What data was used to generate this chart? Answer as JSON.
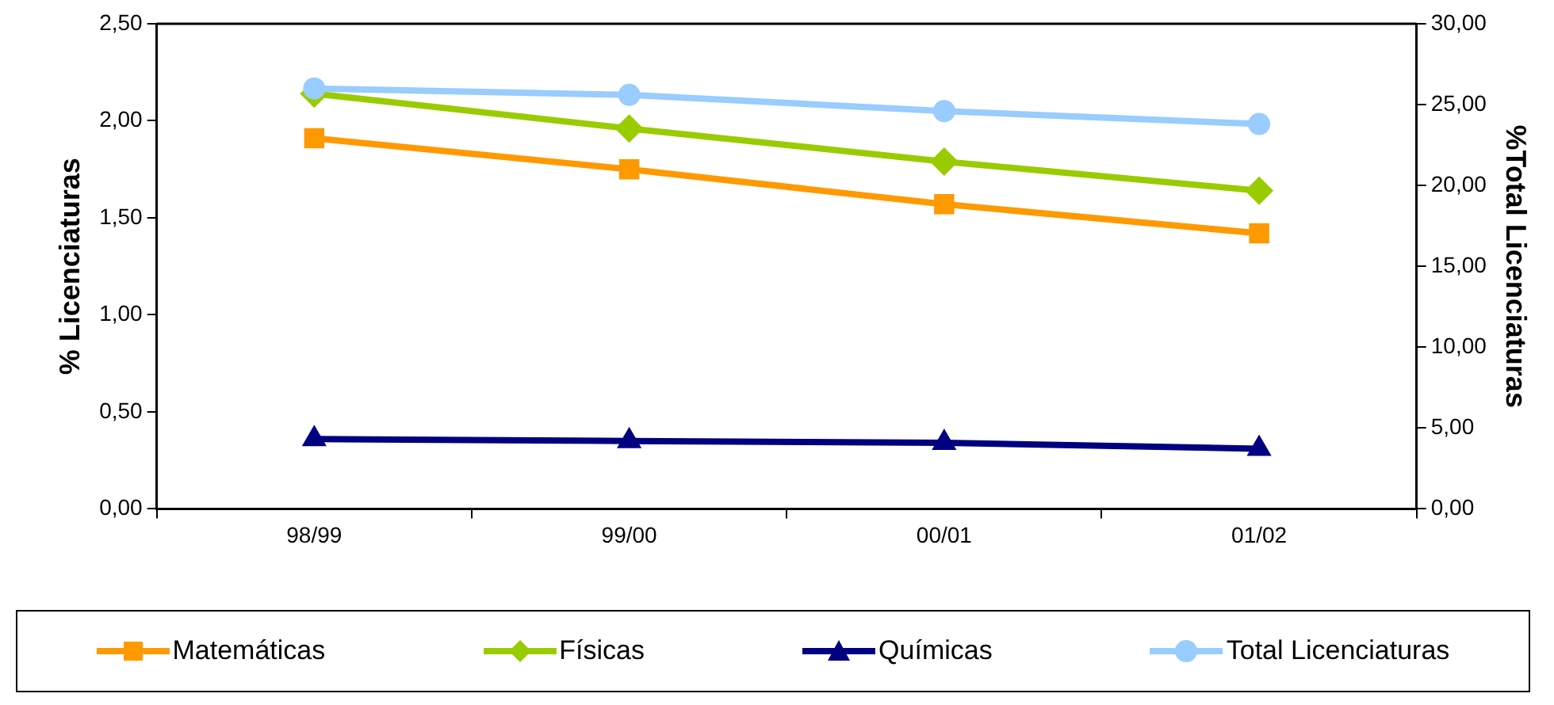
{
  "chart_data": {
    "type": "line",
    "ylabel": "% Licenciaturas",
    "y2label": "%Total Licenciaturas",
    "categories": [
      "98/99",
      "99/00",
      "00/01",
      "01/02"
    ],
    "series": [
      {
        "name": "Matemáticas",
        "color": "#ff9900",
        "marker": "square",
        "values": [
          1.91,
          1.75,
          1.57,
          1.42
        ]
      },
      {
        "name": "Físicas",
        "color": "#99cc00",
        "marker": "diamond",
        "values": [
          2.14,
          1.96,
          1.79,
          1.64
        ]
      },
      {
        "name": "Químicas",
        "color": "#000080",
        "marker": "triangle",
        "values": [
          0.36,
          0.35,
          0.34,
          0.31
        ]
      },
      {
        "name": "Total Licenciaturas",
        "color": "#99ccff",
        "marker": "circle",
        "axis": "y2",
        "values": [
          26.0,
          25.6,
          24.6,
          23.8
        ]
      }
    ],
    "ylim": [
      0,
      2.5
    ],
    "yticks": [
      {
        "value": 0,
        "label": "0,00"
      },
      {
        "value": 0.5,
        "label": "0,50"
      },
      {
        "value": 1,
        "label": "1,00"
      },
      {
        "value": 1.5,
        "label": "1,50"
      },
      {
        "value": 2,
        "label": "2,00"
      },
      {
        "value": 2.5,
        "label": "2,50"
      }
    ],
    "y2lim": [
      0,
      30
    ],
    "y2ticks": [
      {
        "value": 0,
        "label": "0,00"
      },
      {
        "value": 5,
        "label": "5,00"
      },
      {
        "value": 10,
        "label": "10,00"
      },
      {
        "value": 15,
        "label": "15,00"
      },
      {
        "value": 20,
        "label": "20,00"
      },
      {
        "value": 25,
        "label": "25,00"
      },
      {
        "value": 30,
        "label": "30,00"
      }
    ],
    "grid": false,
    "legend": "bottom",
    "line_style": "solid"
  }
}
